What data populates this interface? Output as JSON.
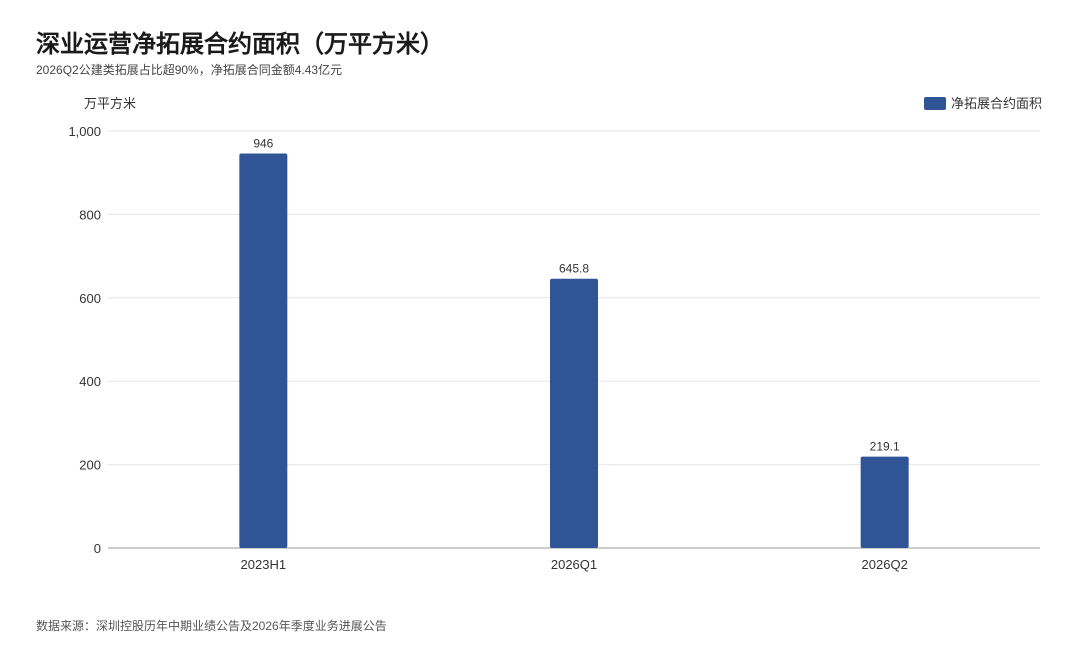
{
  "title": "深业运营净拓展合约面积（万平方米）",
  "subtitle": "2026Q2公建类拓展占比超90%，净拓展合同金额4.43亿元",
  "source": "数据来源：深圳控股历年中期业绩公告及2026年季度业务进展公告",
  "colors": {
    "bar": "#2f5597",
    "grid": "#e6e6e6",
    "axis": "#999999",
    "text": "#333333"
  },
  "chart_data": {
    "type": "bar",
    "categories": [
      "2023H1",
      "2026Q1",
      "2026Q2"
    ],
    "series": [
      {
        "name": "净拓展合约面积",
        "values": [
          946,
          645.8,
          219.1
        ],
        "value_labels": [
          "946",
          "645.8",
          "219.1"
        ]
      }
    ],
    "ylabel": "万平方米",
    "ylim": [
      0,
      1000
    ],
    "yticks": [
      0,
      200,
      400,
      600,
      800,
      1000
    ],
    "ytick_labels": [
      "0",
      "200",
      "400",
      "600",
      "800",
      "1,000"
    ],
    "grid": true,
    "legend_position": "top-right"
  }
}
